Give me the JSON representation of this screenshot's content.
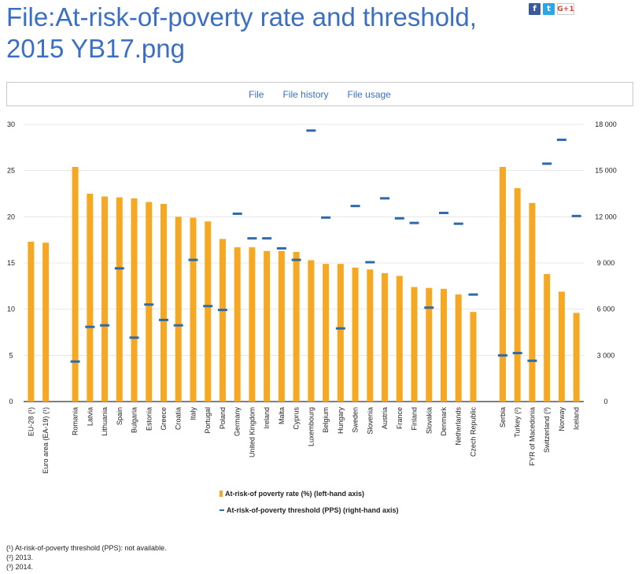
{
  "page": {
    "title": "File:At-risk-of-poverty rate and threshold, 2015 YB17.png",
    "social": {
      "facebook": "f",
      "twitter": "t",
      "google_plus": "G+1"
    }
  },
  "tabs": [
    "File",
    "File history",
    "File usage"
  ],
  "colors": {
    "bar": "#f7a823",
    "threshold": "#2e69a8",
    "link": "#3a6fc4"
  },
  "chart_data": {
    "type": "bar",
    "categories": [
      "EU-28 (¹)",
      "Euro area (EA-19) (¹)",
      "Romania",
      "Latvia",
      "Lithuania",
      "Spain",
      "Bulgaria",
      "Estonia",
      "Greece",
      "Croatia",
      "Italy",
      "Portugal",
      "Poland",
      "Germany",
      "United Kingdom",
      "Ireland",
      "Malta",
      "Cyprus",
      "Luxembourg",
      "Belgium",
      "Hungary",
      "Sweden",
      "Slovenia",
      "Austria",
      "France",
      "Finland",
      "Slovakia",
      "Denmark",
      "Netherlands",
      "Czech Republic",
      "Serbia",
      "Turkey (²)",
      "FYR of Macedonia",
      "Switzerland (³)",
      "Norway",
      "Iceland"
    ],
    "group_breaks_after": [
      1,
      29
    ],
    "series": [
      {
        "name": "At-risk-of poverty rate (%) (left-hand axis)",
        "axis": "left",
        "style": "bar",
        "values": [
          17.3,
          17.2,
          25.4,
          22.5,
          22.2,
          22.1,
          22.0,
          21.6,
          21.4,
          20.0,
          19.9,
          19.5,
          17.6,
          16.7,
          16.7,
          16.3,
          16.3,
          16.2,
          15.3,
          14.9,
          14.9,
          14.5,
          14.3,
          13.9,
          13.6,
          12.4,
          12.3,
          12.2,
          11.6,
          9.7,
          25.4,
          23.1,
          21.5,
          13.8,
          11.9,
          9.6
        ]
      },
      {
        "name": "At-risk-of-poverty threshold (PPS) (right-hand axis)",
        "axis": "right",
        "style": "dash",
        "values": [
          null,
          null,
          2600,
          4850,
          4950,
          8650,
          4150,
          6300,
          5300,
          4950,
          9200,
          6200,
          5950,
          12200,
          10600,
          10600,
          9950,
          9200,
          17600,
          11950,
          4750,
          12700,
          9050,
          13200,
          11900,
          11600,
          6100,
          12250,
          11550,
          6950,
          3000,
          3150,
          2650,
          15450,
          17000,
          12050
        ]
      }
    ],
    "left_axis": {
      "min": 0,
      "max": 30,
      "ticks": [
        "0",
        "5",
        "10",
        "15",
        "20",
        "25",
        "30"
      ]
    },
    "right_axis": {
      "min": 0,
      "max": 18000,
      "ticks": [
        "0",
        "3 000",
        "6 000",
        "9 000",
        "12 000",
        "15 000",
        "18 000"
      ]
    },
    "xlabel": "",
    "ylabel": "",
    "grid": true,
    "legend_position": "bottom-center"
  },
  "legend": {
    "rate": "At-risk-of poverty rate (%) (left-hand axis)",
    "threshold": "At-risk-of-poverty threshold (PPS) (right-hand axis)"
  },
  "notes": [
    "(¹) At-risk-of-poverty threshold (PPS): not available.",
    "(²) 2013.",
    "(³) 2014."
  ]
}
